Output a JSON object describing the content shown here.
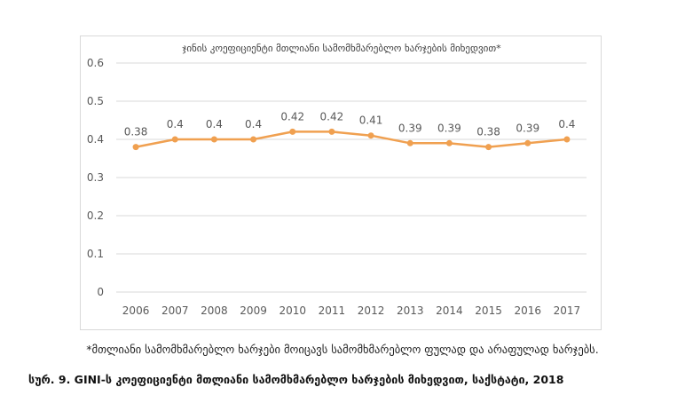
{
  "chart_data": {
    "type": "line",
    "title": "ჯინის კოეფიციენტი მთლიანი სამომხმარებლო  ხარჯების მიხედვით*",
    "categories": [
      "2006",
      "2007",
      "2008",
      "2009",
      "2010",
      "2011",
      "2012",
      "2013",
      "2014",
      "2015",
      "2016",
      "2017"
    ],
    "series": [
      {
        "values": [
          0.38,
          0.4,
          0.4,
          0.4,
          0.42,
          0.42,
          0.41,
          0.39,
          0.39,
          0.38,
          0.39,
          0.4
        ],
        "labels": [
          "0.38",
          "0.4",
          "0.4",
          "0.4",
          "0.42",
          "0.42",
          "0.41",
          "0.39",
          "0.39",
          "0.38",
          "0.39",
          "0.4"
        ]
      }
    ],
    "ylim": [
      0,
      0.6
    ],
    "yticks": [
      0,
      0.1,
      0.2,
      0.3,
      0.4,
      0.5,
      0.6
    ],
    "ytick_labels": [
      "0",
      "0.1",
      "0.2",
      "0.3",
      "0.4",
      "0.5",
      "0.6"
    ],
    "grid": true,
    "colors": {
      "line": "#F0A050",
      "grid": "#d9d9d9",
      "axis_text": "#595959"
    }
  },
  "footnote": "*მთლიანი სამომხმარებლო ხარჯები მოიცავს სამომხმარებლო ფულად და არაფულად ხარჯებს.",
  "caption": "სურ. 9. GINI-ს კოეფიციენტი მთლიანი სამომხმარებლო ხარჯების მიხედვით, საქსტატი, 2018"
}
